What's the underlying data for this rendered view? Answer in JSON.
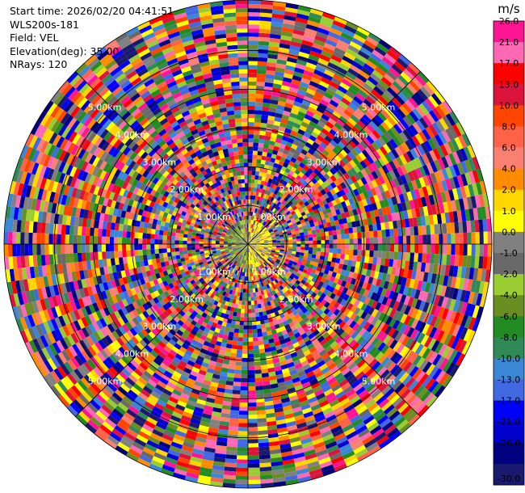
{
  "info": {
    "start_time": "Start time: 2026/02/20 04:41:51",
    "instrument": "WLS200s-181",
    "field": "Field: VEL",
    "elevation": "Elevation(deg): 35.00",
    "nrays": "NRays: 120"
  },
  "chart_data": {
    "type": "heatmap",
    "projection": "polar-ppi",
    "field": "VEL",
    "units": "m/s",
    "nrays": 120,
    "range_rings_km": [
      1.0,
      2.0,
      3.0,
      4.0,
      5.0
    ],
    "range_ring_labels": [
      "1.00km",
      "2.00km",
      "3.00km",
      "4.00km",
      "5.00km"
    ],
    "max_range_km": 6.3,
    "num_gates": 60,
    "grid": true,
    "colorbar": {
      "position": "right",
      "unit_label": "m/s",
      "ticks": [
        "26.0",
        "21.0",
        "17.0",
        "13.0",
        "10.0",
        "8.0",
        "6.0",
        "4.0",
        "2.0",
        "1.0",
        "0.0",
        "-1.0",
        "-2.0",
        "-4.0",
        "-6.0",
        "-8.0",
        "-10.0",
        "-13.0",
        "-17.0",
        "-21.0",
        "-26.0",
        "-30.0"
      ],
      "colors": [
        "#ff1493",
        "#ff69b4",
        "#ff0000",
        "#dc143c",
        "#ff4500",
        "#ff6347",
        "#fa8072",
        "#ff8c00",
        "#ffd700",
        "#ffff00",
        "#808080",
        "#696969",
        "#9acd32",
        "#6b8e23",
        "#228b22",
        "#2e8b57",
        "#3a87d6",
        "#4169e1",
        "#0000ff",
        "#0000cd",
        "#000080",
        "#191970"
      ]
    }
  }
}
